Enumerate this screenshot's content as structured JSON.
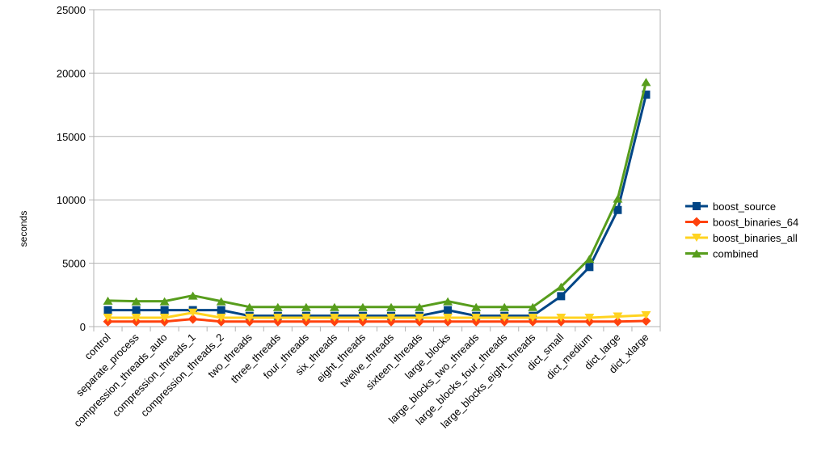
{
  "chart_data": {
    "type": "line",
    "title": "",
    "xlabel": "",
    "ylabel": "seconds",
    "ylim": [
      0,
      25000
    ],
    "yticks": [
      0,
      5000,
      10000,
      15000,
      20000,
      25000
    ],
    "grid": "horizontal",
    "legend_position": "right",
    "categories": [
      "control",
      "separate_process",
      "compression_threads_auto",
      "compression_threads_1",
      "compression_threads_2",
      "two_threads",
      "three_threads",
      "four_threads",
      "six_threads",
      "eight_threads",
      "twelve_threads",
      "sixteen_threads",
      "large_blocks",
      "large_blocks_two_threads",
      "large_blocks_four_threads",
      "large_blocks_eight_threads",
      "dict_small",
      "dict_medium",
      "dict_large",
      "dict_xlarge"
    ],
    "series": [
      {
        "name": "boost_source",
        "color": "#004586",
        "marker": "square",
        "values": [
          1300,
          1300,
          1300,
          1300,
          1300,
          850,
          850,
          850,
          850,
          850,
          850,
          850,
          1300,
          850,
          850,
          850,
          2400,
          4700,
          9200,
          18300
        ]
      },
      {
        "name": "boost_binaries_64",
        "color": "#ff420e",
        "marker": "diamond",
        "values": [
          400,
          400,
          400,
          600,
          400,
          400,
          400,
          400,
          400,
          400,
          400,
          400,
          400,
          400,
          400,
          400,
          400,
          400,
          400,
          450
        ]
      },
      {
        "name": "boost_binaries_all",
        "color": "#ffd320",
        "marker": "triangle-down",
        "values": [
          700,
          700,
          700,
          1100,
          700,
          700,
          700,
          700,
          700,
          700,
          700,
          700,
          700,
          700,
          700,
          700,
          700,
          700,
          800,
          900
        ]
      },
      {
        "name": "combined",
        "color": "#579d1c",
        "marker": "triangle-up",
        "values": [
          2050,
          2000,
          2000,
          2450,
          2000,
          1550,
          1550,
          1550,
          1550,
          1550,
          1550,
          1550,
          2000,
          1550,
          1550,
          1550,
          3150,
          5350,
          10100,
          19300
        ]
      }
    ]
  }
}
